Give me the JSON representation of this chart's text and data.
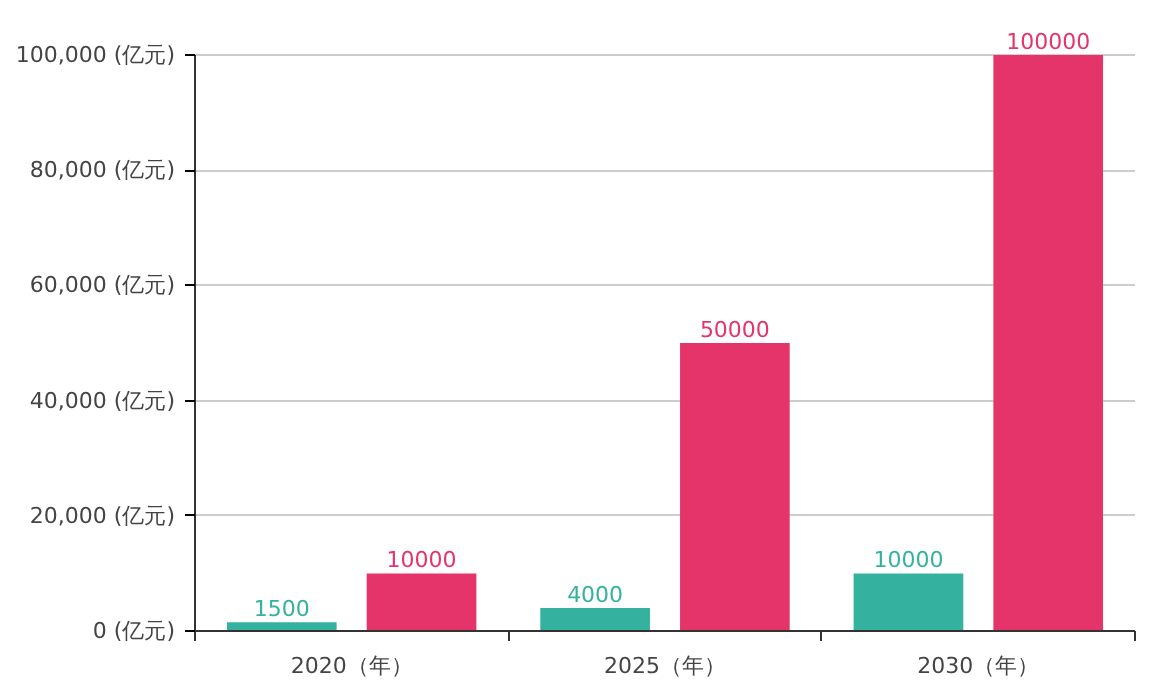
{
  "chart_data": {
    "type": "bar",
    "categories": [
      "2020（年）",
      "2025（年）",
      "2030（年）"
    ],
    "series": [
      {
        "color": "#35b29f",
        "values": [
          1500,
          4000,
          10000
        ]
      },
      {
        "color": "#e5346a",
        "values": [
          10000,
          50000,
          100000
        ]
      }
    ],
    "ylim": [
      0,
      100000
    ],
    "yticks": [
      {
        "value": 0,
        "label": "0 (亿元)"
      },
      {
        "value": 20000,
        "label": "20,000 (亿元)"
      },
      {
        "value": 40000,
        "label": "40,000 (亿元)"
      },
      {
        "value": 60000,
        "label": "60,000 (亿元)"
      },
      {
        "value": 80000,
        "label": "80,000 (亿元)"
      },
      {
        "value": 100000,
        "label": "100,000 (亿元)"
      }
    ],
    "grid": "y",
    "data_labels": true
  }
}
